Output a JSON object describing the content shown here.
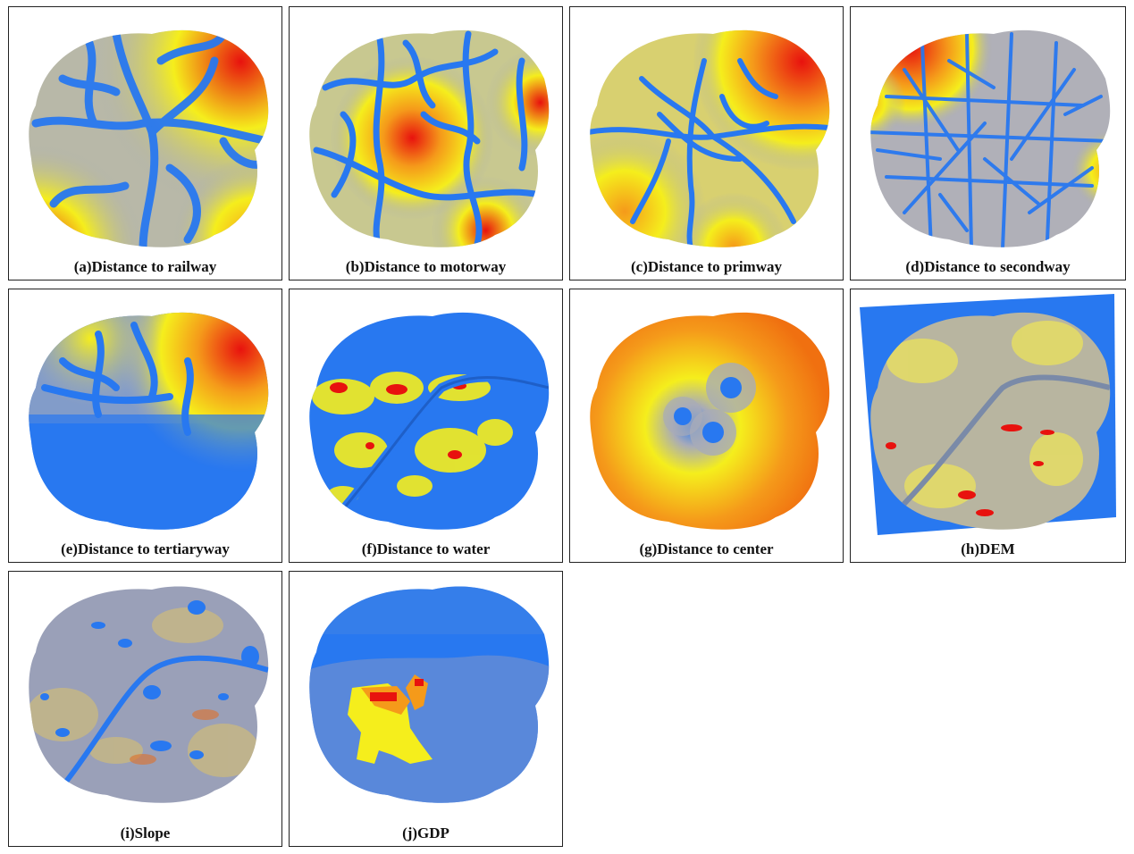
{
  "figure": {
    "panels": [
      {
        "label": "(a)Distance to railway"
      },
      {
        "label": "(b)Distance to motorway"
      },
      {
        "label": "(c)Distance to primway"
      },
      {
        "label": "(d)Distance to secondway"
      },
      {
        "label": "(e)Distance to tertiaryway"
      },
      {
        "label": "(f)Distance to water"
      },
      {
        "label": "(g)Distance to center"
      },
      {
        "label": "(h)DEM"
      },
      {
        "label": "(i)Slope"
      },
      {
        "label": "(j)GDP"
      }
    ]
  },
  "colors": {
    "low": "#2878f0",
    "mid_gray": "#a8abb8",
    "mid_yellow": "#f5ee1c",
    "high_orange": "#f59a1a",
    "high_red": "#e8120e"
  }
}
